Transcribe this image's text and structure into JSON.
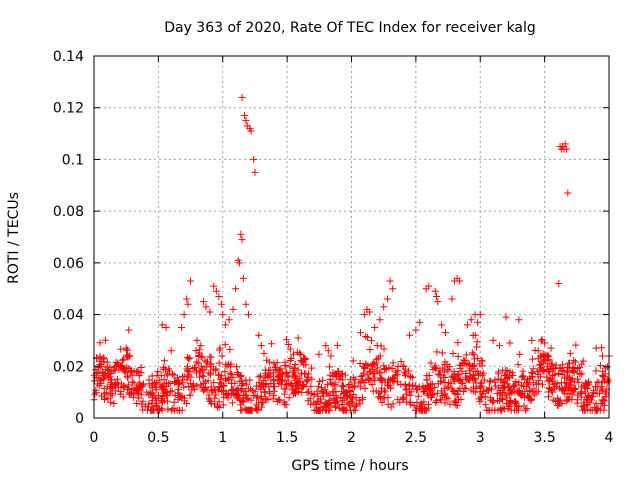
{
  "chart_data": {
    "type": "scatter",
    "title": "Day 363 of 2020, Rate Of TEC Index for receiver kalg",
    "xlabel": "GPS time / hours",
    "ylabel": "ROTI / TECUs",
    "xlim": [
      0,
      4
    ],
    "ylim": [
      0,
      0.14
    ],
    "x_ticks": [
      0,
      0.5,
      1,
      1.5,
      2,
      2.5,
      3,
      3.5,
      4
    ],
    "x_tick_labels": [
      "0",
      "0.5",
      "1",
      "1.5",
      "2",
      "2.5",
      "3",
      "3.5",
      "4"
    ],
    "y_ticks": [
      0,
      0.02,
      0.04,
      0.06,
      0.08,
      0.1,
      0.12,
      0.14
    ],
    "y_tick_labels": [
      "0",
      "0.02",
      "0.04",
      "0.06",
      "0.08",
      "0.1",
      "0.12",
      "0.14"
    ],
    "grid": true,
    "marker": "+",
    "color": "#ff0000",
    "baseline_band": {
      "x_range": [
        0,
        4
      ],
      "y_typical_min": 0.004,
      "y_typical_max": 0.02,
      "description_note": "dense cloud of points covering the full time span"
    },
    "series": [
      {
        "name": "ROTI",
        "points": [
          [
            1.15,
            0.124
          ],
          [
            1.17,
            0.117
          ],
          [
            1.18,
            0.115
          ],
          [
            1.19,
            0.113
          ],
          [
            1.21,
            0.112
          ],
          [
            1.22,
            0.111
          ],
          [
            1.24,
            0.1
          ],
          [
            1.25,
            0.095
          ],
          [
            1.14,
            0.071
          ],
          [
            1.15,
            0.069
          ],
          [
            1.12,
            0.061
          ],
          [
            1.13,
            0.06
          ],
          [
            1.16,
            0.054
          ],
          [
            1.1,
            0.05
          ],
          [
            1.18,
            0.044
          ],
          [
            1.08,
            0.042
          ],
          [
            1.2,
            0.04
          ],
          [
            1.05,
            0.038
          ],
          [
            0.75,
            0.053
          ],
          [
            0.72,
            0.046
          ],
          [
            0.73,
            0.044
          ],
          [
            0.7,
            0.04
          ],
          [
            0.68,
            0.035
          ],
          [
            0.85,
            0.045
          ],
          [
            0.87,
            0.043
          ],
          [
            0.9,
            0.041
          ],
          [
            0.93,
            0.051
          ],
          [
            0.95,
            0.049
          ],
          [
            0.97,
            0.047
          ],
          [
            0.99,
            0.044
          ],
          [
            1.0,
            0.04
          ],
          [
            1.02,
            0.036
          ],
          [
            0.8,
            0.03
          ],
          [
            0.83,
            0.028
          ],
          [
            0.53,
            0.036
          ],
          [
            0.56,
            0.035
          ],
          [
            0.6,
            0.026
          ],
          [
            0.27,
            0.034
          ],
          [
            0.25,
            0.027
          ],
          [
            0.02,
            0.023
          ],
          [
            1.28,
            0.032
          ],
          [
            1.3,
            0.028
          ],
          [
            1.32,
            0.025
          ],
          [
            1.8,
            0.028
          ],
          [
            1.82,
            0.026
          ],
          [
            1.84,
            0.024
          ],
          [
            2.07,
            0.033
          ],
          [
            2.1,
            0.04
          ],
          [
            2.12,
            0.042
          ],
          [
            2.14,
            0.041
          ],
          [
            2.18,
            0.035
          ],
          [
            2.22,
            0.038
          ],
          [
            2.25,
            0.043
          ],
          [
            2.28,
            0.046
          ],
          [
            2.3,
            0.053
          ],
          [
            2.32,
            0.05
          ],
          [
            2.2,
            0.028
          ],
          [
            2.45,
            0.032
          ],
          [
            2.5,
            0.034
          ],
          [
            2.53,
            0.037
          ],
          [
            2.58,
            0.05
          ],
          [
            2.6,
            0.051
          ],
          [
            2.65,
            0.049
          ],
          [
            2.66,
            0.047
          ],
          [
            2.67,
            0.045
          ],
          [
            2.7,
            0.036
          ],
          [
            2.73,
            0.033
          ],
          [
            2.78,
            0.046
          ],
          [
            2.8,
            0.053
          ],
          [
            2.82,
            0.054
          ],
          [
            2.84,
            0.053
          ],
          [
            2.9,
            0.036
          ],
          [
            2.93,
            0.038
          ],
          [
            2.96,
            0.04
          ],
          [
            2.98,
            0.037
          ],
          [
            3.0,
            0.04
          ],
          [
            3.1,
            0.03
          ],
          [
            3.15,
            0.028
          ],
          [
            3.2,
            0.039
          ],
          [
            3.23,
            0.029
          ],
          [
            3.3,
            0.038
          ],
          [
            3.4,
            0.03
          ],
          [
            3.45,
            0.026
          ],
          [
            3.5,
            0.029
          ],
          [
            3.55,
            0.027
          ],
          [
            3.61,
            0.052
          ],
          [
            3.62,
            0.105
          ],
          [
            3.63,
            0.104
          ],
          [
            3.64,
            0.105
          ],
          [
            3.65,
            0.104
          ],
          [
            3.66,
            0.106
          ],
          [
            3.67,
            0.104
          ],
          [
            3.68,
            0.087
          ],
          [
            3.7,
            0.025
          ],
          [
            3.8,
            0.022
          ],
          [
            3.9,
            0.027
          ],
          [
            3.95,
            0.024
          ],
          [
            4.0,
            0.024
          ]
        ]
      }
    ]
  }
}
